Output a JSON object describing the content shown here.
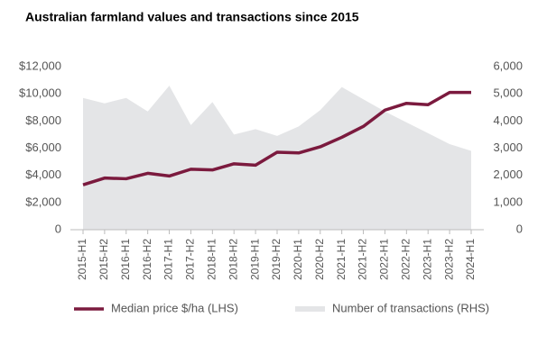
{
  "chart_data": {
    "type": "line",
    "title": "Australian farmland values and transactions since 2015",
    "categories": [
      "2015-H1",
      "2015-H2",
      "2016-H1",
      "2016-H2",
      "2017-H1",
      "2017-H2",
      "2018-H1",
      "2018-H2",
      "2019-H1",
      "2019-H2",
      "2020-H1",
      "2020-H2",
      "2021-H1",
      "2021-H2",
      "2022-H1",
      "2022-H2",
      "2023-H1",
      "2023-H2",
      "2024-H1"
    ],
    "series": [
      {
        "name": "Median price $/ha (LHS)",
        "color": "#7b1a3e",
        "type": "line",
        "axis": "y",
        "values": [
          3300,
          3800,
          3750,
          4150,
          3950,
          4450,
          4400,
          4850,
          4750,
          5700,
          5650,
          6100,
          6800,
          7600,
          8800,
          9300,
          9200,
          10100,
          10100
        ]
      },
      {
        "name": "Number of transactions (RHS)",
        "color": "#e4e5e7",
        "type": "area",
        "axis": "y2",
        "values": [
          4850,
          4650,
          4850,
          4350,
          5300,
          3850,
          4700,
          3500,
          3700,
          3450,
          3800,
          4400,
          5250,
          4800,
          4350,
          3950,
          3550,
          3150,
          2900
        ]
      }
    ],
    "ylim": [
      0,
      12000
    ],
    "yticks": [
      {
        "value": 0,
        "label": "0"
      },
      {
        "value": 2000,
        "label": "$2,000"
      },
      {
        "value": 4000,
        "label": "$4,000"
      },
      {
        "value": 6000,
        "label": "$6,000"
      },
      {
        "value": 8000,
        "label": "$8,000"
      },
      {
        "value": 10000,
        "label": "$10,000"
      },
      {
        "value": 12000,
        "label": "$12,000"
      }
    ],
    "y2lim": [
      0,
      6000
    ],
    "y2ticks": [
      0,
      {
        "value": 1000,
        "label": "1,000"
      },
      {
        "value": 2000,
        "label": "2,000"
      },
      {
        "value": 3000,
        "label": "3,000"
      },
      {
        "value": 4000,
        "label": "4,000"
      },
      {
        "value": 5000,
        "label": "5,000"
      },
      {
        "value": 6000,
        "label": "6,000"
      }
    ],
    "grid": false
  }
}
